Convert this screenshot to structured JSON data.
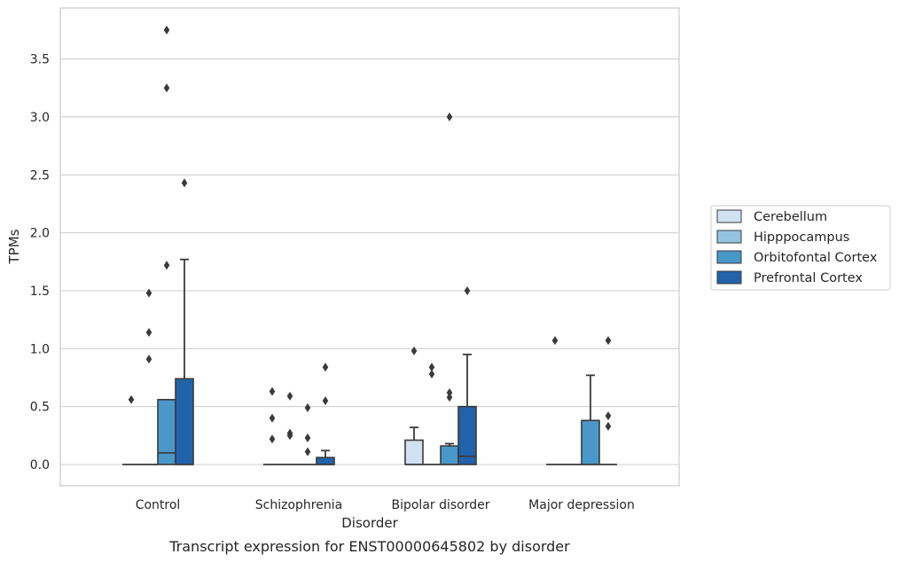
{
  "chart_data": {
    "type": "box",
    "xlabel": "Disorder",
    "ylabel": "TPMs",
    "caption": "Transcript expression for ENST00000645802 by disorder",
    "categories": [
      "Control",
      "Schizophrenia",
      "Bipolar disorder",
      "Major depression"
    ],
    "ylim": [
      -0.18,
      3.95
    ],
    "yticks": [
      "0.0",
      "0.5",
      "1.0",
      "1.5",
      "2.0",
      "2.5",
      "3.0",
      "3.5"
    ],
    "grid": "horizontal",
    "legend_position": "right",
    "series": [
      {
        "name": "Cerebellum",
        "color": "#d0e1f2",
        "boxes": [
          {
            "q1": 0,
            "median": 0,
            "q3": 0,
            "whisker_low": 0,
            "whisker_high": 0,
            "outliers": [
              0.56
            ]
          },
          {
            "q1": 0,
            "median": 0,
            "q3": 0,
            "whisker_low": 0,
            "whisker_high": 0,
            "outliers": [
              0.63,
              0.4,
              0.22
            ]
          },
          {
            "q1": 0,
            "median": 0,
            "q3": 0.21,
            "whisker_low": 0,
            "whisker_high": 0.32,
            "outliers": [
              0.98
            ]
          },
          {
            "q1": 0,
            "median": 0,
            "q3": 0,
            "whisker_low": 0,
            "whisker_high": 0,
            "outliers": [
              1.07
            ]
          }
        ]
      },
      {
        "name": "Hipppocampus",
        "color": "#94c4df",
        "boxes": [
          {
            "q1": 0,
            "median": 0,
            "q3": 0,
            "whisker_low": 0,
            "whisker_high": 0,
            "outliers": [
              1.48,
              1.14,
              0.91
            ]
          },
          {
            "q1": 0,
            "median": 0,
            "q3": 0,
            "whisker_low": 0,
            "whisker_high": 0,
            "outliers": [
              0.59,
              0.27,
              0.25
            ]
          },
          {
            "q1": 0,
            "median": 0,
            "q3": 0,
            "whisker_low": 0,
            "whisker_high": 0,
            "outliers": [
              0.84,
              0.78
            ]
          },
          {
            "q1": 0,
            "median": 0,
            "q3": 0,
            "whisker_low": 0,
            "whisker_high": 0,
            "outliers": []
          }
        ]
      },
      {
        "name": "Orbitofontal Cortex",
        "color": "#4a98c9",
        "boxes": [
          {
            "q1": 0,
            "median": 0.1,
            "q3": 0.56,
            "whisker_low": 0,
            "whisker_high": 0.56,
            "outliers": [
              3.75,
              3.25,
              1.72
            ]
          },
          {
            "q1": 0,
            "median": 0,
            "q3": 0,
            "whisker_low": 0,
            "whisker_high": 0,
            "outliers": [
              0.49,
              0.23,
              0.11
            ]
          },
          {
            "q1": 0,
            "median": 0,
            "q3": 0.16,
            "whisker_low": 0,
            "whisker_high": 0.18,
            "outliers": [
              3.0,
              0.62,
              0.58
            ]
          },
          {
            "q1": 0,
            "median": 0,
            "q3": 0.38,
            "whisker_low": 0,
            "whisker_high": 0.77,
            "outliers": []
          }
        ]
      },
      {
        "name": "Prefrontal Cortex",
        "color": "#2163aa",
        "boxes": [
          {
            "q1": 0,
            "median": 0,
            "q3": 0.74,
            "whisker_low": 0,
            "whisker_high": 1.77,
            "outliers": [
              2.43
            ]
          },
          {
            "q1": 0,
            "median": 0,
            "q3": 0.06,
            "whisker_low": 0,
            "whisker_high": 0.12,
            "outliers": [
              0.84,
              0.55
            ]
          },
          {
            "q1": 0,
            "median": 0.07,
            "q3": 0.5,
            "whisker_low": 0,
            "whisker_high": 0.95,
            "outliers": [
              1.5
            ]
          },
          {
            "q1": 0,
            "median": 0,
            "q3": 0,
            "whisker_low": 0,
            "whisker_high": 0,
            "outliers": [
              1.07,
              0.42,
              0.33
            ]
          }
        ]
      }
    ]
  }
}
